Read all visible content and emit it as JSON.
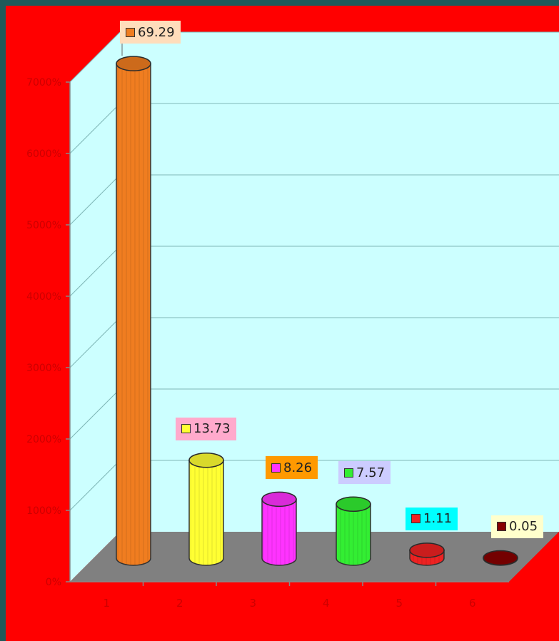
{
  "chart_data": {
    "type": "bar",
    "style": "3d-cylinder",
    "categories": [
      "1",
      "2",
      "3",
      "4",
      "5",
      "6"
    ],
    "values": [
      69.29,
      13.73,
      8.26,
      7.57,
      1.11,
      0.05
    ],
    "data_labels": [
      "69.29",
      "13.73",
      "8.26",
      "7.57",
      "1.11",
      "0.05"
    ],
    "y_ticks": [
      0,
      10,
      20,
      30,
      40,
      50,
      60,
      70
    ],
    "y_tick_labels": [
      "0%",
      "1000%",
      "2000%",
      "3000%",
      "4000%",
      "5000%",
      "6000%",
      "7000%"
    ],
    "ylim": [
      0,
      70
    ],
    "grid": true,
    "legend": "none",
    "colors": {
      "background": "#ff0000",
      "back_wall": "#ccffff",
      "floor": "#808080",
      "axis_text": "#cc0000",
      "bars": [
        "#f07d20",
        "#ffff33",
        "#ff33ff",
        "#33ee33",
        "#ee2222",
        "#880000"
      ],
      "label_boxes": [
        "#ffddbb",
        "#ffaacc",
        "#ff9900",
        "#ccccff",
        "#00ffff",
        "#ffffcc"
      ]
    }
  }
}
